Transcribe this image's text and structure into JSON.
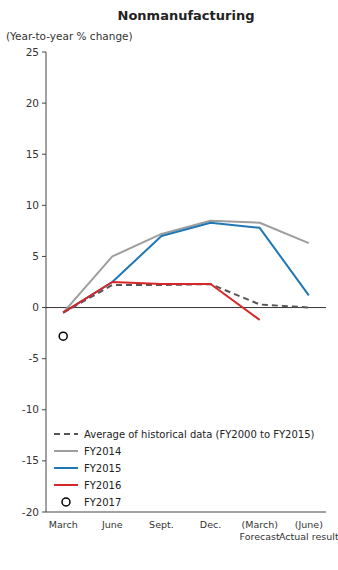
{
  "chart_data": {
    "type": "line",
    "title": "Nonmanufacturing",
    "y_label": "(Year-to-year % change)",
    "categories": [
      "March",
      "June",
      "Sept.",
      "Dec.",
      "(March)\nForecast",
      "(June)\nActual result"
    ],
    "ylim": [
      -20,
      25
    ],
    "yticks": [
      -20,
      -15,
      -10,
      -5,
      0,
      5,
      10,
      15,
      20,
      25
    ],
    "grid": false,
    "legend": "lower left",
    "series": [
      {
        "name": "Average of historical data (FY2000 to FY2015)",
        "color": "#555555",
        "line_style": "dashed",
        "values": [
          -0.5,
          2.2,
          2.2,
          2.3,
          0.3,
          0.0
        ]
      },
      {
        "name": "FY2014",
        "color": "#9e9e9e",
        "line_style": "solid",
        "values": [
          -0.5,
          5.0,
          7.2,
          8.5,
          8.3,
          6.3
        ]
      },
      {
        "name": "FY2015",
        "color": "#1f77b4",
        "line_style": "solid",
        "values": [
          -0.5,
          2.5,
          7.0,
          8.3,
          7.8,
          1.2
        ]
      },
      {
        "name": "FY2016",
        "color": "#d62728",
        "line_style": "solid",
        "values": [
          -0.5,
          2.5,
          2.3,
          2.3,
          -1.2,
          null
        ]
      },
      {
        "name": "FY2017",
        "type": "scatter",
        "marker": "circle",
        "color": "#000000",
        "values": [
          -2.8,
          null,
          null,
          null,
          null,
          null
        ]
      }
    ]
  }
}
